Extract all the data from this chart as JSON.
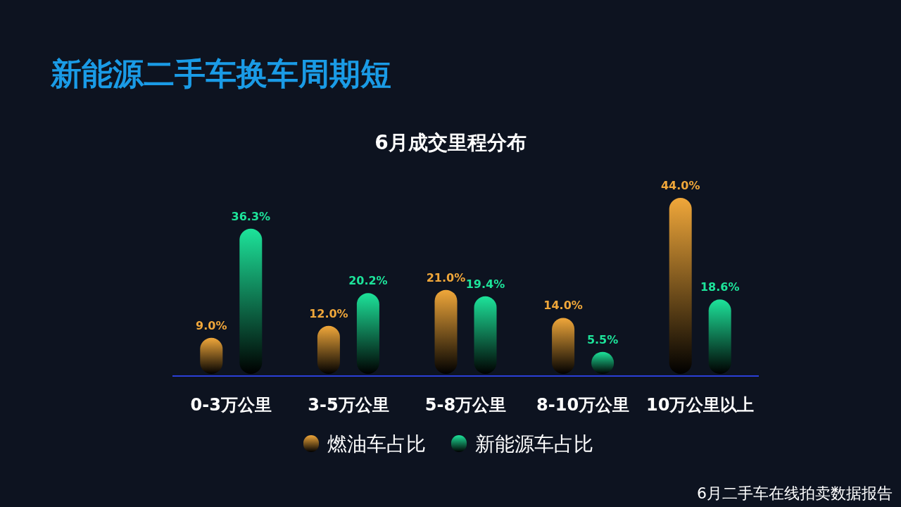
{
  "chart_data": {
    "type": "bar",
    "title": "新能源二手车换车周期短",
    "subtitle": "6月成交里程分布",
    "categories": [
      "0-3万公里",
      "3-5万公里",
      "5-8万公里",
      "8-10万公里",
      "10万公里以上"
    ],
    "series": [
      {
        "name": "燃油车占比",
        "color": "#f0a73a",
        "values": [
          9.0,
          12.0,
          21.0,
          14.0,
          44.0
        ],
        "value_labels": [
          "9.0%",
          "12.0%",
          "21.0%",
          "14.0%",
          "44.0%"
        ]
      },
      {
        "name": "新能源车占比",
        "color": "#1de39a",
        "values": [
          36.3,
          20.2,
          19.4,
          5.5,
          18.6
        ],
        "value_labels": [
          "36.3%",
          "20.2%",
          "19.4%",
          "5.5%",
          "18.6%"
        ]
      }
    ],
    "legend": "bottom",
    "annotations": [
      "6月二手车在线拍卖数据报告"
    ]
  }
}
